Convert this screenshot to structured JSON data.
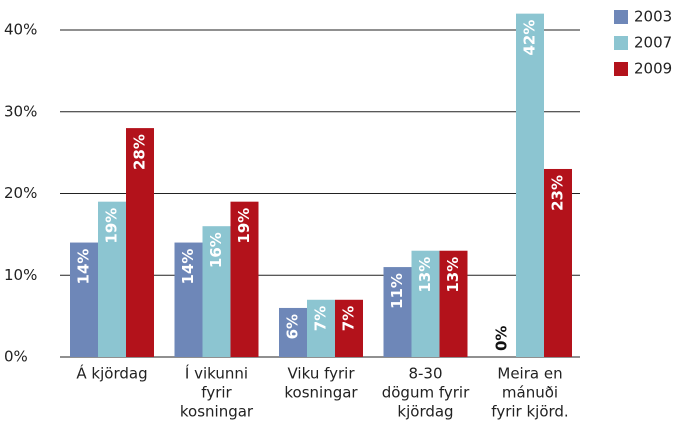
{
  "chart_data": {
    "type": "bar",
    "categories": [
      [
        "Á kjördag"
      ],
      [
        "Í vikunni",
        "fyrir",
        "kosningar"
      ],
      [
        "Viku fyrir",
        "kosningar"
      ],
      [
        "8-30",
        "dögum fyrir",
        "kjördag"
      ],
      [
        "Meira en",
        "mánuði",
        "fyrir kjörd."
      ]
    ],
    "series": [
      {
        "name": "2003",
        "color": "#6e87b8",
        "values": [
          14,
          14,
          6,
          11,
          0
        ],
        "value_labels": [
          "14%",
          "14%",
          "6%",
          "11%",
          "0%"
        ]
      },
      {
        "name": "2007",
        "color": "#8cc5d1",
        "values": [
          19,
          16,
          7,
          13,
          42
        ],
        "value_labels": [
          "19%",
          "16%",
          "7%",
          "13%",
          "42%"
        ]
      },
      {
        "name": "2009",
        "color": "#b3121b",
        "values": [
          28,
          19,
          7,
          13,
          23
        ],
        "value_labels": [
          "28%",
          "19%",
          "7%",
          "13%",
          "23%"
        ]
      }
    ],
    "ylim": [
      0,
      40
    ],
    "yticks": [
      {
        "value": 0,
        "label": "0%"
      },
      {
        "value": 10,
        "label": "10%"
      },
      {
        "value": 20,
        "label": "20%"
      },
      {
        "value": 30,
        "label": "30%"
      },
      {
        "value": 40,
        "label": "40%"
      }
    ],
    "grid": true,
    "legend": "right"
  }
}
